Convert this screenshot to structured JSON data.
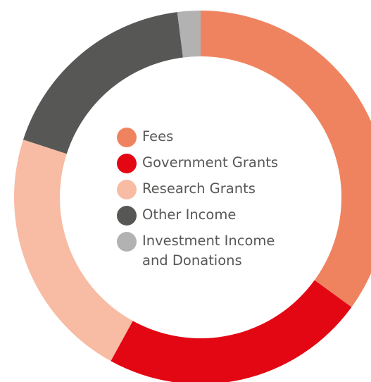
{
  "chart_data": {
    "type": "pie",
    "donut": true,
    "categories": [
      "Fees",
      "Government Grants",
      "Research Grants",
      "Other Income",
      "Investment Income and Donations"
    ],
    "values": [
      35,
      23,
      22,
      18,
      2
    ],
    "colors": [
      "#f0835f",
      "#e30613",
      "#f8bba3",
      "#575756",
      "#b2b2b2"
    ]
  }
}
